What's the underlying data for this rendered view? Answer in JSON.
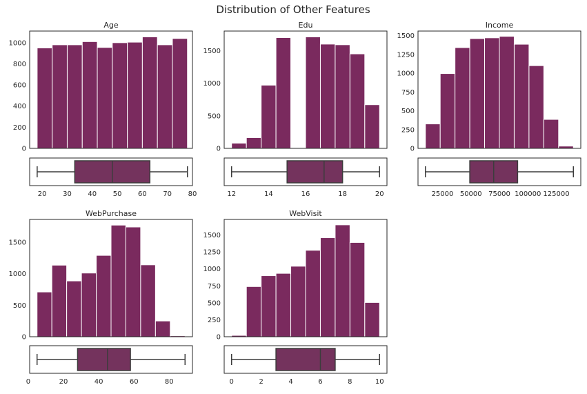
{
  "title": "Distribution of Other Features",
  "colors": {
    "bar": "#7a2a5e",
    "box": "#74335d",
    "edge": "#ffffff",
    "line": "#3c3c3c"
  },
  "chart_data": [
    {
      "type": "bar",
      "title": "Age",
      "bin_edges": [
        18,
        24,
        30,
        36,
        42,
        48,
        54,
        60,
        66,
        72,
        78
      ],
      "values": [
        950,
        980,
        980,
        1010,
        955,
        1000,
        1005,
        1055,
        980,
        1040
      ],
      "ylim": [
        0,
        1110
      ],
      "yticks": [
        0,
        200,
        400,
        600,
        800,
        1000
      ],
      "xlim": [
        15,
        80
      ],
      "xticks": [
        20,
        30,
        40,
        50,
        60,
        70,
        80
      ],
      "box": {
        "min": 18,
        "q1": 33,
        "median": 48,
        "q3": 63,
        "max": 78
      }
    },
    {
      "type": "bar",
      "title": "Edu",
      "bin_edges": [
        12,
        12.8,
        13.6,
        14.4,
        15.2,
        16,
        16.8,
        17.6,
        18.4,
        19.2,
        20
      ],
      "values": [
        80,
        165,
        970,
        1700,
        0,
        1710,
        1600,
        1590,
        1450,
        670
      ],
      "ylim": [
        0,
        1800
      ],
      "yticks": [
        0,
        500,
        1000,
        1500
      ],
      "xlim": [
        11.6,
        20.4
      ],
      "xticks": [
        12,
        14,
        16,
        18,
        20
      ],
      "box": {
        "min": 12,
        "q1": 15,
        "median": 17,
        "q3": 18,
        "max": 20
      }
    },
    {
      "type": "bar",
      "title": "Income",
      "bin_edges": [
        10000,
        23000,
        36000,
        49000,
        62000,
        75000,
        88000,
        101000,
        114000,
        127000,
        140000
      ],
      "values": [
        325,
        995,
        1340,
        1460,
        1470,
        1490,
        1385,
        1100,
        385,
        30
      ],
      "ylim": [
        0,
        1560
      ],
      "yticks": [
        0,
        250,
        500,
        750,
        1000,
        1250,
        1500
      ],
      "xlim": [
        3500,
        146500
      ],
      "xticks": [
        25000,
        50000,
        75000,
        100000,
        125000
      ],
      "box": {
        "min": 10000,
        "q1": 49000,
        "median": 70000,
        "q3": 91000,
        "max": 140000
      }
    },
    {
      "type": "bar",
      "title": "WebPurchase",
      "bin_edges": [
        5,
        13.4,
        21.8,
        30.2,
        38.6,
        47,
        55.4,
        63.8,
        72.2,
        80.6,
        89
      ],
      "values": [
        710,
        1135,
        885,
        1010,
        1290,
        1770,
        1740,
        1140,
        250,
        15
      ],
      "ylim": [
        0,
        1860
      ],
      "yticks": [
        0,
        500,
        1000,
        1500
      ],
      "xlim": [
        0.8,
        93.2
      ],
      "xticks": [
        0,
        20,
        40,
        60,
        80
      ],
      "box": {
        "min": 5,
        "q1": 28,
        "median": 45,
        "q3": 58,
        "max": 89
      }
    },
    {
      "type": "bar",
      "title": "WebVisit",
      "bin_edges": [
        0,
        1,
        2,
        3,
        4,
        5,
        6,
        7,
        8,
        9,
        10
      ],
      "values": [
        20,
        740,
        900,
        935,
        1040,
        1275,
        1460,
        1650,
        1390,
        505
      ],
      "ylim": [
        0,
        1730
      ],
      "yticks": [
        0,
        250,
        500,
        750,
        1000,
        1250,
        1500
      ],
      "xlim": [
        -0.5,
        10.5
      ],
      "xticks": [
        0,
        2,
        4,
        6,
        8,
        10
      ],
      "box": {
        "min": 0,
        "q1": 3,
        "median": 6,
        "q3": 7,
        "max": 10
      }
    }
  ]
}
